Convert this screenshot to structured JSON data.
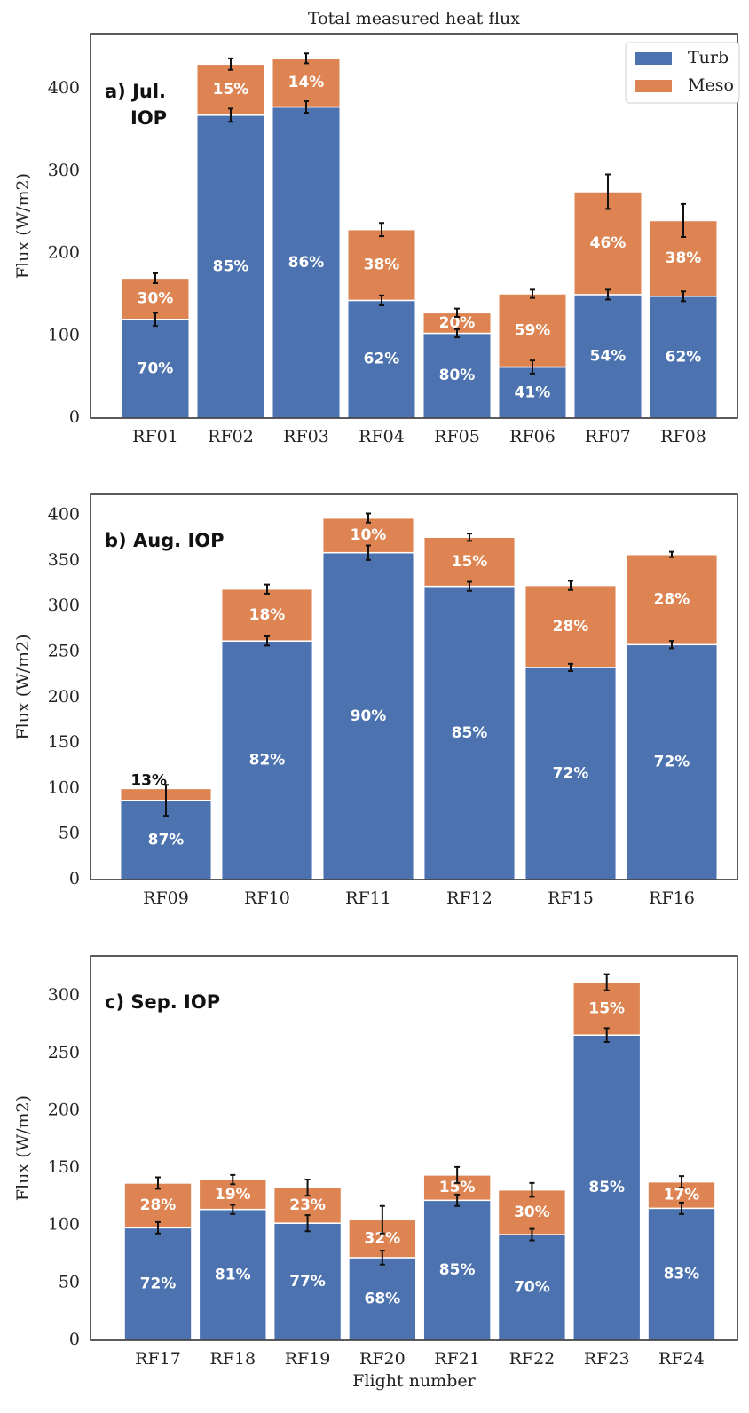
{
  "chart_data": [
    {
      "type": "bar",
      "stacked": true,
      "title": "Total measured heat flux",
      "annotation": [
        "a) Jul.",
        "IOP"
      ],
      "ylabel": "Flux (W/m2)",
      "legend": "upper right",
      "categories": [
        "RF01",
        "RF02",
        "RF03",
        "RF04",
        "RF05",
        "RF06",
        "RF07",
        "RF08"
      ],
      "series": [
        {
          "name": "Turb",
          "color": "#4c72b0",
          "values": [
            120,
            368,
            378,
            143,
            103,
            62,
            150,
            148
          ],
          "errors": [
            8,
            8,
            7,
            6,
            5,
            8,
            6,
            6
          ],
          "labels": [
            "70%",
            "85%",
            "86%",
            "62%",
            "80%",
            "41%",
            "54%",
            "62%"
          ]
        },
        {
          "name": "Meso",
          "color": "#dd8452",
          "values": [
            50,
            62,
            59,
            86,
            25,
            89,
            125,
            92
          ],
          "errors": [
            6,
            7,
            6,
            8,
            5,
            5,
            21,
            20
          ],
          "labels": [
            "30%",
            "15%",
            "14%",
            "38%",
            "20%",
            "59%",
            "46%",
            "38%"
          ]
        }
      ],
      "ylim": [
        0,
        467
      ],
      "yticks": [
        0,
        100,
        200,
        300,
        400
      ]
    },
    {
      "type": "bar",
      "stacked": true,
      "annotation": [
        "b) Aug. IOP"
      ],
      "ylabel": "Flux (W/m2)",
      "categories": [
        "RF09",
        "RF10",
        "RF11",
        "RF12",
        "RF15",
        "RF16"
      ],
      "series": [
        {
          "color": "#4c72b0",
          "values": [
            87,
            262,
            359,
            322,
            233,
            258
          ],
          "errors": [
            17,
            5,
            8,
            5,
            4,
            4
          ],
          "labels": [
            "87%",
            "82%",
            "90%",
            "85%",
            "72%",
            "72%"
          ]
        },
        {
          "color": "#dd8452",
          "values": [
            13,
            57,
            38,
            54,
            90,
            99
          ],
          "errors": [
            null,
            5,
            5,
            4,
            5,
            3
          ],
          "labels": [
            "13%",
            "18%",
            "10%",
            "15%",
            "28%",
            "28%"
          ]
        }
      ],
      "ylim": [
        0,
        423
      ],
      "yticks": [
        0,
        50,
        100,
        150,
        200,
        250,
        300,
        350,
        400
      ]
    },
    {
      "type": "bar",
      "stacked": true,
      "annotation": [
        "c) Sep. IOP"
      ],
      "ylabel": "Flux (W/m2)",
      "xlabel": "Flight number",
      "categories": [
        "RF17",
        "RF18",
        "RF19",
        "RF20",
        "RF21",
        "RF22",
        "RF23",
        "RF24"
      ],
      "series": [
        {
          "color": "#4c72b0",
          "values": [
            98,
            114,
            102,
            72,
            122,
            92,
            266,
            115
          ],
          "errors": [
            5,
            4,
            7,
            6,
            5,
            5,
            6,
            5
          ],
          "labels": [
            "72%",
            "81%",
            "77%",
            "68%",
            "85%",
            "70%",
            "85%",
            "83%"
          ]
        },
        {
          "color": "#dd8452",
          "values": [
            39,
            26,
            31,
            33,
            22,
            39,
            46,
            23
          ],
          "errors": [
            5,
            4,
            7,
            12,
            7,
            6,
            7,
            5
          ],
          "labels": [
            "28%",
            "19%",
            "23%",
            "32%",
            "15%",
            "30%",
            "15%",
            "17%"
          ]
        }
      ],
      "ylim": [
        0,
        335
      ],
      "yticks": [
        0,
        50,
        100,
        150,
        200,
        250,
        300
      ]
    }
  ]
}
